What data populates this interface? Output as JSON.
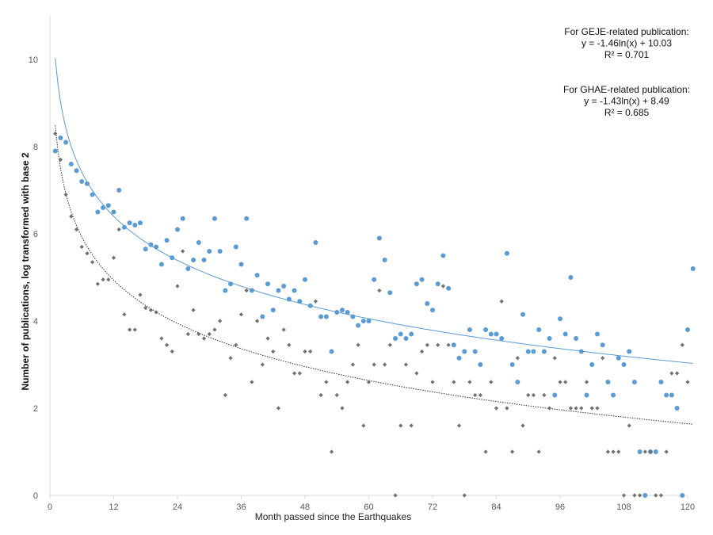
{
  "chart_data": {
    "type": "scatter",
    "xlabel": "Month passed since the Earthquakes",
    "ylabel": "Number of publications, log transformed with base 2",
    "xlim": [
      0,
      120
    ],
    "ylim": [
      0,
      11
    ],
    "xticks": [
      "0",
      "12",
      "24",
      "36",
      "48",
      "60",
      "72",
      "84",
      "96",
      "108",
      "120"
    ],
    "yticks": [
      "0",
      "2",
      "4",
      "6",
      "8",
      "10"
    ],
    "grid": false,
    "colors": {
      "geje": "#5b9bd5",
      "ghae": "#707070"
    },
    "annotations": [
      {
        "lines": [
          "For GEJE-related publication:",
          "y = -1.46ln(x) + 10.03",
          "R² = 0.701"
        ]
      },
      {
        "lines": [
          "For GHAE-related publication:",
          "y = -1.43ln(x) + 8.49",
          "R² = 0.685"
        ]
      }
    ],
    "series": [
      {
        "key": "geje",
        "marker": "circle",
        "trend": {
          "type": "log",
          "a": -1.46,
          "b": 10.03
        },
        "points": [
          [
            1,
            7.9
          ],
          [
            2,
            8.2
          ],
          [
            3,
            8.1
          ],
          [
            4,
            7.6
          ],
          [
            5,
            7.45
          ],
          [
            6,
            7.2
          ],
          [
            7,
            7.15
          ],
          [
            8,
            6.9
          ],
          [
            9,
            6.5
          ],
          [
            10,
            6.6
          ],
          [
            11,
            6.65
          ],
          [
            12,
            6.5
          ],
          [
            13,
            7.0
          ],
          [
            14,
            6.15
          ],
          [
            15,
            6.25
          ],
          [
            16,
            6.2
          ],
          [
            17,
            6.25
          ],
          [
            18,
            5.65
          ],
          [
            19,
            5.75
          ],
          [
            20,
            5.7
          ],
          [
            21,
            5.3
          ],
          [
            22,
            5.85
          ],
          [
            23,
            5.45
          ],
          [
            24,
            6.1
          ],
          [
            25,
            6.35
          ],
          [
            26,
            5.2
          ],
          [
            27,
            5.4
          ],
          [
            28,
            5.8
          ],
          [
            29,
            5.4
          ],
          [
            30,
            5.6
          ],
          [
            31,
            6.35
          ],
          [
            32,
            5.6
          ],
          [
            33,
            4.7
          ],
          [
            34,
            4.85
          ],
          [
            35,
            5.7
          ],
          [
            36,
            5.3
          ],
          [
            37,
            6.35
          ],
          [
            38,
            4.7
          ],
          [
            39,
            5.05
          ],
          [
            40,
            4.1
          ],
          [
            41,
            4.85
          ],
          [
            42,
            4.25
          ],
          [
            43,
            4.7
          ],
          [
            44,
            4.8
          ],
          [
            45,
            4.5
          ],
          [
            46,
            4.7
          ],
          [
            47,
            4.45
          ],
          [
            48,
            4.95
          ],
          [
            49,
            4.35
          ],
          [
            50,
            5.8
          ],
          [
            51,
            4.1
          ],
          [
            52,
            4.1
          ],
          [
            53,
            3.3
          ],
          [
            54,
            4.2
          ],
          [
            55,
            4.25
          ],
          [
            56,
            4.2
          ],
          [
            57,
            4.1
          ],
          [
            58,
            3.9
          ],
          [
            59,
            4.0
          ],
          [
            60,
            4.0
          ],
          [
            61,
            4.95
          ],
          [
            62,
            5.9
          ],
          [
            63,
            5.4
          ],
          [
            64,
            4.65
          ],
          [
            65,
            3.6
          ],
          [
            66,
            3.7
          ],
          [
            67,
            3.6
          ],
          [
            68,
            3.7
          ],
          [
            69,
            4.85
          ],
          [
            70,
            4.95
          ],
          [
            71,
            4.4
          ],
          [
            72,
            4.25
          ],
          [
            73,
            4.85
          ],
          [
            74,
            5.5
          ],
          [
            75,
            4.75
          ],
          [
            76,
            3.45
          ],
          [
            77,
            3.15
          ],
          [
            78,
            3.3
          ],
          [
            79,
            3.8
          ],
          [
            80,
            3.3
          ],
          [
            81,
            3.0
          ],
          [
            82,
            3.8
          ],
          [
            83,
            3.7
          ],
          [
            84,
            3.7
          ],
          [
            85,
            3.6
          ],
          [
            86,
            5.55
          ],
          [
            87,
            3.0
          ],
          [
            88,
            2.6
          ],
          [
            89,
            4.15
          ],
          [
            90,
            3.3
          ],
          [
            91,
            3.3
          ],
          [
            92,
            3.8
          ],
          [
            93,
            3.3
          ],
          [
            94,
            3.6
          ],
          [
            95,
            2.3
          ],
          [
            96,
            4.05
          ],
          [
            97,
            3.7
          ],
          [
            98,
            5.0
          ],
          [
            99,
            3.6
          ],
          [
            100,
            3.3
          ],
          [
            101,
            2.3
          ],
          [
            102,
            3.0
          ],
          [
            103,
            3.7
          ],
          [
            104,
            3.45
          ],
          [
            105,
            2.6
          ],
          [
            106,
            2.3
          ],
          [
            107,
            3.15
          ],
          [
            108,
            3.0
          ],
          [
            109,
            3.3
          ],
          [
            110,
            2.6
          ],
          [
            111,
            1.0
          ],
          [
            112,
            0
          ],
          [
            113,
            1.0
          ],
          [
            114,
            1.0
          ],
          [
            115,
            2.6
          ],
          [
            116,
            2.3
          ],
          [
            117,
            2.3
          ],
          [
            118,
            2.0
          ],
          [
            119,
            0
          ],
          [
            120,
            3.8
          ],
          [
            121,
            5.2
          ]
        ]
      },
      {
        "key": "ghae",
        "marker": "diamond",
        "trend": {
          "type": "log",
          "a": -1.43,
          "b": 8.49
        },
        "points": [
          [
            1,
            8.3
          ],
          [
            2,
            7.7
          ],
          [
            3,
            6.9
          ],
          [
            4,
            6.4
          ],
          [
            5,
            6.1
          ],
          [
            6,
            5.7
          ],
          [
            7,
            5.55
          ],
          [
            8,
            5.35
          ],
          [
            9,
            4.85
          ],
          [
            10,
            4.95
          ],
          [
            11,
            4.95
          ],
          [
            12,
            5.45
          ],
          [
            13,
            6.1
          ],
          [
            14,
            4.15
          ],
          [
            15,
            3.8
          ],
          [
            16,
            3.8
          ],
          [
            17,
            4.6
          ],
          [
            18,
            4.3
          ],
          [
            19,
            4.25
          ],
          [
            20,
            4.2
          ],
          [
            21,
            3.6
          ],
          [
            22,
            3.45
          ],
          [
            23,
            3.3
          ],
          [
            24,
            4.8
          ],
          [
            25,
            5.6
          ],
          [
            26,
            3.7
          ],
          [
            27,
            4.25
          ],
          [
            28,
            3.7
          ],
          [
            29,
            3.6
          ],
          [
            30,
            3.7
          ],
          [
            31,
            3.8
          ],
          [
            32,
            4.0
          ],
          [
            33,
            2.3
          ],
          [
            34,
            3.15
          ],
          [
            35,
            3.45
          ],
          [
            36,
            4.15
          ],
          [
            37,
            4.7
          ],
          [
            38,
            2.6
          ],
          [
            39,
            4.0
          ],
          [
            40,
            3.0
          ],
          [
            41,
            3.6
          ],
          [
            42,
            3.3
          ],
          [
            43,
            2.0
          ],
          [
            44,
            3.8
          ],
          [
            45,
            3.45
          ],
          [
            46,
            2.8
          ],
          [
            47,
            2.8
          ],
          [
            48,
            3.3
          ],
          [
            49,
            3.3
          ],
          [
            50,
            4.45
          ],
          [
            51,
            2.3
          ],
          [
            52,
            2.6
          ],
          [
            53,
            1.0
          ],
          [
            54,
            2.3
          ],
          [
            55,
            2.0
          ],
          [
            56,
            2.6
          ],
          [
            57,
            3.0
          ],
          [
            58,
            3.45
          ],
          [
            59,
            1.6
          ],
          [
            60,
            2.6
          ],
          [
            61,
            3.0
          ],
          [
            62,
            4.7
          ],
          [
            63,
            3.0
          ],
          [
            64,
            3.45
          ],
          [
            65,
            0
          ],
          [
            66,
            1.6
          ],
          [
            67,
            3.0
          ],
          [
            68,
            1.6
          ],
          [
            69,
            2.8
          ],
          [
            70,
            3.3
          ],
          [
            71,
            3.45
          ],
          [
            72,
            2.6
          ],
          [
            73,
            3.45
          ],
          [
            74,
            4.8
          ],
          [
            75,
            3.45
          ],
          [
            76,
            2.6
          ],
          [
            77,
            1.6
          ],
          [
            78,
            0
          ],
          [
            79,
            2.6
          ],
          [
            80,
            2.3
          ],
          [
            81,
            2.3
          ],
          [
            82,
            1.0
          ],
          [
            83,
            2.6
          ],
          [
            84,
            2.0
          ],
          [
            85,
            4.45
          ],
          [
            86,
            2.0
          ],
          [
            87,
            1.0
          ],
          [
            88,
            3.15
          ],
          [
            89,
            1.6
          ],
          [
            90,
            2.3
          ],
          [
            91,
            2.3
          ],
          [
            92,
            1.0
          ],
          [
            93,
            2.3
          ],
          [
            94,
            2.0
          ],
          [
            95,
            3.15
          ],
          [
            96,
            2.6
          ],
          [
            97,
            2.6
          ],
          [
            98,
            2.0
          ],
          [
            99,
            2.0
          ],
          [
            100,
            2.0
          ],
          [
            101,
            2.6
          ],
          [
            102,
            2.0
          ],
          [
            103,
            2.0
          ],
          [
            104,
            3.15
          ],
          [
            105,
            1.0
          ],
          [
            106,
            1.0
          ],
          [
            107,
            1.0
          ],
          [
            108,
            0
          ],
          [
            109,
            1.6
          ],
          [
            110,
            0
          ],
          [
            111,
            0
          ],
          [
            112,
            1.0
          ],
          [
            113,
            1.0
          ],
          [
            114,
            0
          ],
          [
            115,
            0
          ],
          [
            116,
            1.0
          ],
          [
            117,
            2.8
          ],
          [
            118,
            2.8
          ],
          [
            119,
            3.45
          ],
          [
            120,
            2.6
          ]
        ]
      }
    ]
  }
}
